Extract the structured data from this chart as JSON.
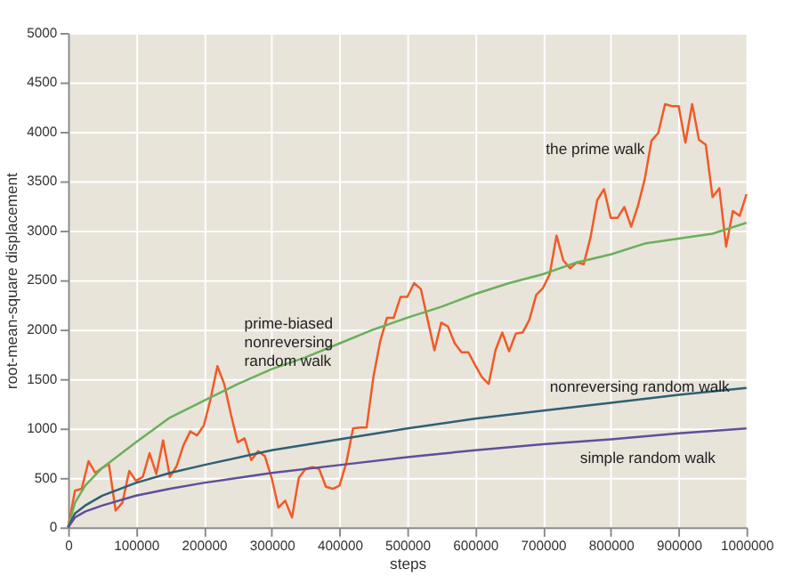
{
  "chart_data": {
    "type": "line",
    "xlabel": "steps",
    "ylabel": "root-mean-square displacement",
    "xlim": [
      0,
      1000000
    ],
    "ylim": [
      0,
      5000
    ],
    "xticks": [
      0,
      100000,
      200000,
      300000,
      400000,
      500000,
      600000,
      700000,
      800000,
      900000,
      1000000
    ],
    "yticks": [
      0,
      500,
      1000,
      1500,
      2000,
      2500,
      3000,
      3500,
      4000,
      4500,
      5000
    ],
    "grid": true,
    "marker": "none",
    "line_style": "solid",
    "series": [
      {
        "name": "the prime walk",
        "color": "#f05a28",
        "x": [
          0,
          10000,
          20000,
          30000,
          40000,
          50000,
          60000,
          70000,
          80000,
          90000,
          100000,
          110000,
          120000,
          130000,
          140000,
          150000,
          160000,
          170000,
          180000,
          190000,
          200000,
          210000,
          220000,
          230000,
          240000,
          250000,
          260000,
          270000,
          280000,
          290000,
          300000,
          310000,
          320000,
          330000,
          340000,
          350000,
          360000,
          370000,
          380000,
          390000,
          400000,
          410000,
          420000,
          430000,
          440000,
          450000,
          460000,
          470000,
          480000,
          490000,
          500000,
          510000,
          520000,
          530000,
          540000,
          550000,
          560000,
          570000,
          580000,
          590000,
          600000,
          610000,
          620000,
          630000,
          640000,
          650000,
          660000,
          670000,
          680000,
          690000,
          700000,
          710000,
          720000,
          730000,
          740000,
          750000,
          760000,
          770000,
          780000,
          790000,
          800000,
          810000,
          820000,
          830000,
          840000,
          850000,
          860000,
          870000,
          880000,
          890000,
          900000,
          910000,
          920000,
          930000,
          940000,
          950000,
          960000,
          970000,
          980000,
          990000,
          1000000
        ],
        "values": [
          0,
          370,
          390,
          670,
          550,
          600,
          640,
          170,
          250,
          570,
          470,
          510,
          750,
          540,
          880,
          510,
          620,
          830,
          970,
          930,
          1030,
          1300,
          1630,
          1450,
          1140,
          860,
          900,
          680,
          770,
          720,
          500,
          200,
          270,
          100,
          500,
          590,
          610,
          590,
          410,
          390,
          420,
          650,
          1000,
          1010,
          1010,
          1520,
          1880,
          2120,
          2120,
          2330,
          2330,
          2470,
          2410,
          2100,
          1790,
          2070,
          2030,
          1860,
          1770,
          1770,
          1640,
          1520,
          1450,
          1790,
          1970,
          1780,
          1960,
          1970,
          2100,
          2350,
          2420,
          2560,
          2950,
          2700,
          2620,
          2680,
          2660,
          2930,
          3310,
          3420,
          3130,
          3130,
          3240,
          3040,
          3250,
          3520,
          3910,
          3990,
          4280,
          4260,
          4260,
          3890,
          4280,
          3920,
          3870,
          3340,
          3430,
          2840,
          3200,
          3150,
          3370
        ]
      },
      {
        "name": "prime-biased\nnonreversing\nrandom walk",
        "color": "#6aaf5a",
        "x": [
          0,
          10000,
          25000,
          50000,
          100000,
          150000,
          200000,
          250000,
          300000,
          350000,
          400000,
          450000,
          500000,
          550000,
          600000,
          650000,
          700000,
          750000,
          800000,
          850000,
          900000,
          950000,
          1000000
        ],
        "values": [
          0,
          250,
          420,
          600,
          860,
          1110,
          1280,
          1450,
          1600,
          1720,
          1860,
          2000,
          2120,
          2230,
          2360,
          2470,
          2560,
          2680,
          2760,
          2870,
          2920,
          2970,
          3080
        ]
      },
      {
        "name": "nonreversing random walk",
        "color": "#2f5f74",
        "x": [
          0,
          10000,
          25000,
          50000,
          100000,
          150000,
          200000,
          300000,
          400000,
          500000,
          600000,
          700000,
          800000,
          900000,
          1000000
        ],
        "values": [
          0,
          140,
          220,
          320,
          450,
          550,
          630,
          780,
          890,
          1000,
          1100,
          1180,
          1260,
          1340,
          1410
        ]
      },
      {
        "name": "simple random walk",
        "color": "#5e4f9a",
        "x": [
          0,
          10000,
          25000,
          50000,
          100000,
          150000,
          200000,
          300000,
          400000,
          500000,
          600000,
          700000,
          800000,
          900000,
          1000000
        ],
        "values": [
          0,
          100,
          160,
          220,
          320,
          390,
          450,
          550,
          630,
          710,
          780,
          840,
          890,
          950,
          1000
        ]
      }
    ]
  }
}
